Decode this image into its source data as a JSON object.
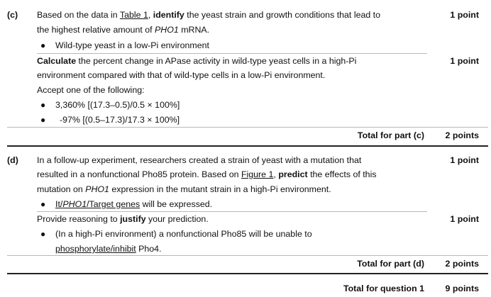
{
  "part_c": {
    "label": "(c)",
    "q1_line1_a": "Based on the data in ",
    "q1_line1_link": "Table 1",
    "q1_line1_b": ", ",
    "q1_line1_verb": "identify",
    "q1_line1_c": " the yeast strain and growth conditions that lead to",
    "q1_line2_a": "the highest relative amount of ",
    "q1_line2_gene": "PHO1",
    "q1_line2_b": " mRNA.",
    "q1_point": "1 point",
    "q1_answer": "Wild-type yeast in a low-Pi environment",
    "q2_verb": "Calculate",
    "q2_line1_rest": " the percent change in APase activity in wild-type yeast cells in a high-Pi",
    "q2_line2": "environment compared with that of wild-type cells in a low-Pi environment.",
    "q2_point": "1 point",
    "q2_accept": "Accept one of the following:",
    "q2_ans1": "3,360% [(17.3–0.5)/0.5 × 100%]",
    "q2_ans2": "-97% [(0.5–17.3)/17.3 × 100%]",
    "total_label": "Total for part (c)",
    "total_points": "2 points"
  },
  "part_d": {
    "label": "(d)",
    "q1_line1": "In a follow-up experiment, researchers created a strain of yeast with a mutation that",
    "q1_line2_a": "resulted in a nonfunctional Pho85 protein. Based on ",
    "q1_line2_link": "Figure 1",
    "q1_line2_b": ", ",
    "q1_line2_verb": "predict",
    "q1_line2_c": " the effects of this",
    "q1_line3_a": "mutation on ",
    "q1_line3_gene": "PHO1",
    "q1_line3_b": " expression in the mutant strain in a high-Pi environment.",
    "q1_point": "1 point",
    "q1_ans_it": "It",
    "q1_ans_sep1": "/",
    "q1_ans_gene": "PHO1",
    "q1_ans_sep2": "/",
    "q1_ans_target": "Target genes",
    "q1_ans_rest": " will be expressed.",
    "q2_a": "Provide reasoning to ",
    "q2_verb": "justify",
    "q2_b": " your prediction.",
    "q2_point": "1 point",
    "q2_ans_line1": "(In a high-Pi environment) a nonfunctional Pho85 will be unable to",
    "q2_ans_phos": "phosphorylate",
    "q2_ans_sep": "/",
    "q2_ans_inhibit": "inhibit",
    "q2_ans_rest": " Pho4.",
    "total_label": "Total for part (d)",
    "total_points": "2 points"
  },
  "question_total": {
    "label": "Total for question 1",
    "points": "9 points"
  }
}
